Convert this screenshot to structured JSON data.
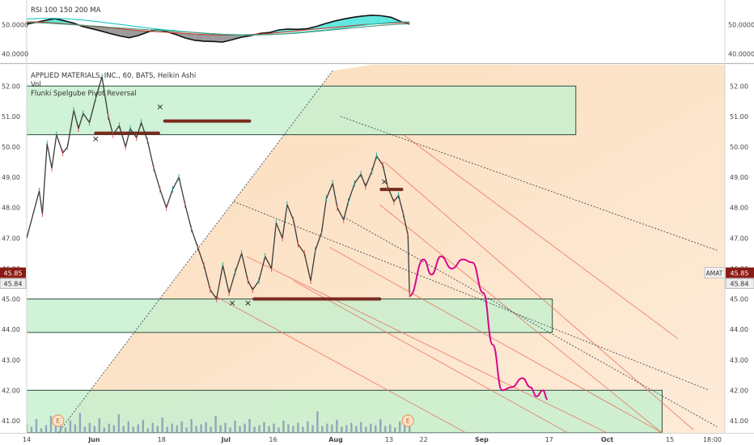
{
  "chart_data": [
    {
      "type": "line",
      "title": "RSI 100 150 200 MA",
      "yticks": [
        "50.0000",
        "40.0000"
      ],
      "ytick_values": [
        50,
        40
      ],
      "ylim": [
        37,
        58
      ],
      "series": [
        {
          "name": "RSI",
          "values": [
            50.2,
            50.8,
            51.5,
            52.1,
            51.4,
            50.6,
            49.4,
            48.6,
            47.8,
            46.9,
            46.1,
            45.5,
            46.3,
            47.5,
            48.4,
            47.6,
            46.6,
            45.4,
            44.6,
            44.3,
            44.2,
            44.0,
            44.8,
            45.7,
            46.2,
            47.0,
            47.3,
            48.2,
            48.5,
            48.4,
            48.6,
            49.4,
            50.4,
            51.3,
            52.0,
            52.6,
            53.0,
            53.3,
            53.1,
            52.6,
            51.2,
            50.2
          ]
        },
        {
          "name": "MA 100",
          "values": [
            51.0,
            51.0,
            50.8,
            50.6,
            50.4,
            50.1,
            49.8,
            49.5,
            49.2,
            48.9,
            48.6,
            48.3,
            48.0,
            47.8,
            47.6,
            47.4,
            47.2,
            47.0,
            46.8,
            46.6,
            46.5,
            46.4,
            46.4,
            46.5,
            46.6,
            46.8,
            47.0,
            47.3,
            47.6,
            47.9,
            48.2,
            48.5,
            48.8,
            49.1,
            49.4,
            49.7,
            50.0,
            50.2,
            50.4,
            50.6,
            50.7,
            50.7
          ]
        },
        {
          "name": "MA 150",
          "values": [
            52.0,
            52.1,
            52.2,
            52.2,
            52.1,
            51.9,
            51.6,
            51.3,
            50.9,
            50.5,
            50.1,
            49.7,
            49.3,
            48.9,
            48.5,
            48.2,
            47.9,
            47.6,
            47.3,
            47.0,
            46.8,
            46.6,
            46.5,
            46.4,
            46.4,
            46.5,
            46.6,
            46.8,
            47.0,
            47.3,
            47.6,
            47.9,
            48.2,
            48.6,
            49.0,
            49.4,
            49.8,
            50.2,
            50.5,
            50.8,
            51.0,
            51.0
          ]
        },
        {
          "name": "MA 200",
          "values": [
            50.8,
            50.7,
            50.6,
            50.4,
            50.2,
            50.0,
            49.8,
            49.6,
            49.4,
            49.1,
            48.9,
            48.7,
            48.5,
            48.3,
            48.1,
            47.9,
            47.7,
            47.5,
            47.3,
            47.1,
            46.9,
            46.7,
            46.6,
            46.5,
            46.5,
            46.5,
            46.6,
            46.7,
            46.9,
            47.1,
            47.4,
            47.7,
            48.0,
            48.3,
            48.6,
            48.9,
            49.2,
            49.5,
            49.8,
            50.0,
            50.2,
            50.3
          ]
        }
      ],
      "colors": {
        "rsi": "#111111",
        "ma100": "#c0392b",
        "ma150": "#18c8c0",
        "ma200": "#4a9a7a"
      }
    },
    {
      "type": "line",
      "title": "APPLIED MATERIALS, INC., 60, BATS, Heikin Ashi",
      "subtitle_lines": [
        "Vol",
        "Flunki Spelgube Pivot Reversal"
      ],
      "symbol": "AMAT",
      "last_price_labels": [
        "45.85",
        "45.84"
      ],
      "last_price": 45.85,
      "ylim": [
        40.6,
        52.7
      ],
      "yticks": [
        "52.00",
        "51.00",
        "50.00",
        "49.00",
        "48.00",
        "47.00",
        "46.00",
        "45.00",
        "44.00",
        "43.00",
        "42.00",
        "41.00"
      ],
      "ytick_values": [
        52,
        51,
        50,
        49,
        48,
        47,
        46,
        45,
        44,
        43,
        42,
        41
      ],
      "xticks": [
        "14",
        "Jun",
        "18",
        "Jul",
        "16",
        "Aug",
        "13",
        "22",
        "Sep",
        "17",
        "Oct",
        "15",
        "18:00"
      ],
      "xtick_positions": [
        0,
        4.3,
        8.6,
        12.7,
        15.7,
        19.7,
        23.1,
        25.3,
        29.0,
        33.3,
        37.0,
        41.0,
        43.7
      ],
      "x_unit": "trading-day index (14 May = 0)",
      "price_series": [
        [
          0.0,
          47.0
        ],
        [
          0.8,
          48.55
        ],
        [
          1.0,
          47.8
        ],
        [
          1.3,
          50.1
        ],
        [
          1.6,
          49.3
        ],
        [
          1.9,
          50.4
        ],
        [
          2.3,
          49.8
        ],
        [
          2.6,
          50.0
        ],
        [
          3.0,
          51.2
        ],
        [
          3.3,
          50.6
        ],
        [
          3.6,
          51.1
        ],
        [
          4.0,
          50.8
        ],
        [
          4.4,
          51.6
        ],
        [
          4.8,
          52.3
        ],
        [
          5.2,
          51.0
        ],
        [
          5.5,
          50.4
        ],
        [
          5.9,
          50.7
        ],
        [
          6.3,
          50.0
        ],
        [
          6.6,
          50.6
        ],
        [
          7.0,
          50.3
        ],
        [
          7.3,
          50.8
        ],
        [
          7.7,
          50.2
        ],
        [
          8.1,
          49.3
        ],
        [
          8.5,
          48.6
        ],
        [
          8.9,
          48.0
        ],
        [
          9.3,
          48.6
        ],
        [
          9.7,
          49.0
        ],
        [
          10.1,
          48.1
        ],
        [
          10.5,
          47.3
        ],
        [
          10.9,
          46.7
        ],
        [
          11.3,
          46.1
        ],
        [
          11.7,
          45.3
        ],
        [
          12.1,
          45.0
        ],
        [
          12.5,
          46.1
        ],
        [
          12.9,
          45.2
        ],
        [
          13.3,
          45.9
        ],
        [
          13.7,
          46.5
        ],
        [
          14.1,
          45.6
        ],
        [
          14.4,
          45.3
        ],
        [
          14.8,
          45.6
        ],
        [
          15.2,
          46.4
        ],
        [
          15.6,
          46.0
        ],
        [
          15.9,
          47.5
        ],
        [
          16.3,
          47.0
        ],
        [
          16.6,
          48.1
        ],
        [
          17.0,
          47.6
        ],
        [
          17.3,
          46.8
        ],
        [
          17.7,
          46.5
        ],
        [
          18.1,
          45.6
        ],
        [
          18.4,
          46.6
        ],
        [
          18.8,
          47.2
        ],
        [
          19.1,
          48.3
        ],
        [
          19.5,
          48.8
        ],
        [
          19.8,
          48.0
        ],
        [
          20.2,
          47.6
        ],
        [
          20.5,
          48.2
        ],
        [
          20.9,
          48.8
        ],
        [
          21.3,
          49.1
        ],
        [
          21.6,
          48.7
        ],
        [
          22.0,
          49.2
        ],
        [
          22.3,
          49.7
        ],
        [
          22.7,
          49.4
        ],
        [
          23.0,
          48.7
        ],
        [
          23.4,
          48.2
        ],
        [
          23.7,
          48.4
        ],
        [
          24.0,
          47.8
        ],
        [
          24.3,
          47.1
        ],
        [
          24.4,
          45.15
        ]
      ],
      "volume_ylim": [
        0,
        100
      ],
      "volume_values": [
        12,
        8,
        18,
        6,
        10,
        22,
        9,
        14,
        7,
        16,
        11,
        26,
        8,
        13,
        9,
        19,
        7,
        12,
        10,
        24,
        9,
        15,
        8,
        11,
        17,
        6,
        13,
        9,
        20,
        8,
        12,
        10,
        15,
        7,
        18,
        9,
        11,
        14,
        8,
        22,
        10,
        13,
        7,
        16,
        9,
        12,
        18,
        8,
        10,
        14,
        9,
        12,
        7,
        16,
        11,
        9,
        13,
        8,
        15,
        10,
        28,
        9,
        12,
        11,
        17,
        8,
        10,
        13,
        9,
        14,
        8,
        12,
        10,
        18,
        9,
        11,
        7,
        15,
        10,
        12
      ],
      "volume_color": "#7d8fb4",
      "projection": [
        [
          24.4,
          45.1
        ],
        [
          25.3,
          46.3
        ],
        [
          25.8,
          45.8
        ],
        [
          26.4,
          46.4
        ],
        [
          27.1,
          46.0
        ],
        [
          27.8,
          46.3
        ],
        [
          28.4,
          46.2
        ],
        [
          29.1,
          45.2
        ],
        [
          29.7,
          43.5
        ],
        [
          30.3,
          42.0
        ],
        [
          30.9,
          42.1
        ],
        [
          31.6,
          42.4
        ],
        [
          32.1,
          42.1
        ],
        [
          32.5,
          41.8
        ],
        [
          32.9,
          42.0
        ],
        [
          33.2,
          41.7
        ]
      ],
      "projection_color": "#d80a8c",
      "rectangles": [
        {
          "x": [
            0.0,
            35.0
          ],
          "y": [
            50.4,
            52.0
          ],
          "color": "#c8f0cf"
        },
        {
          "x": [
            0.0,
            33.5
          ],
          "y": [
            43.9,
            45.0
          ],
          "color": "#c8f0cf"
        },
        {
          "x": [
            0.0,
            40.5
          ],
          "y": [
            40.6,
            42.0
          ],
          "color": "#c8f0cf"
        }
      ],
      "pivot_levels": [
        {
          "x": [
            4.4,
            8.4
          ],
          "y": 50.45
        },
        {
          "x": [
            8.8,
            14.2
          ],
          "y": 50.85
        },
        {
          "x": [
            14.5,
            22.5
          ],
          "y": 45.0
        },
        {
          "x": [
            22.6,
            23.9
          ],
          "y": 48.6
        }
      ],
      "pivot_color": "#7a2b1f",
      "markers": [
        {
          "x": 4.4,
          "y": 50.25,
          "label": "×"
        },
        {
          "x": 8.5,
          "y": 51.3,
          "label": "×"
        },
        {
          "x": 13.1,
          "y": 44.85,
          "label": "×"
        },
        {
          "x": 14.1,
          "y": 44.85,
          "label": "×"
        },
        {
          "x": 22.8,
          "y": 48.85,
          "label": "×"
        }
      ],
      "earnings_markers": [
        {
          "x": 2.0,
          "label": "E"
        },
        {
          "x": 24.3,
          "label": "E"
        }
      ],
      "pitchfork_lines": [
        [
          [
            24.0,
            50.4
          ],
          [
            41.5,
            43.7
          ]
        ],
        [
          [
            22.8,
            49.5
          ],
          [
            42.5,
            40.7
          ]
        ],
        [
          [
            22.5,
            48.1
          ],
          [
            40.5,
            40.6
          ]
        ],
        [
          [
            19.3,
            46.7
          ],
          [
            40.5,
            40.6
          ]
        ],
        [
          [
            17.0,
            45.6
          ],
          [
            34.5,
            40.6
          ]
        ],
        [
          [
            14.0,
            46.4
          ],
          [
            37.0,
            40.6
          ]
        ],
        [
          [
            12.0,
            45.1
          ],
          [
            28.0,
            40.6
          ]
        ]
      ],
      "dotted_lines": [
        [
          [
            13.2,
            48.2
          ],
          [
            43.5,
            42.0
          ]
        ],
        [
          [
            20.2,
            47.7
          ],
          [
            44.0,
            40.8
          ]
        ],
        [
          [
            20.0,
            51.0
          ],
          [
            44.0,
            46.6
          ]
        ],
        [
          [
            2.0,
            40.6
          ],
          [
            19.5,
            52.5
          ]
        ]
      ],
      "colors": {
        "up": "#26a69a",
        "down": "#ef5350",
        "price_line": "#3a3a3a",
        "fan_fill": "#f7c79a",
        "fan_line": "#e8715a",
        "dotted": "#3f4e5a",
        "price_label_bg": "#8a1a14"
      }
    }
  ]
}
